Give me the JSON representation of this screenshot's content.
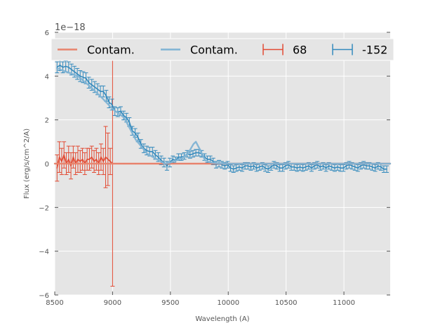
{
  "chart_data": {
    "type": "line",
    "xlabel": "Wavelength (A)",
    "ylabel": "Flux (erg/s/cm^2/A)",
    "y_offset_text": "1e−18",
    "xlim": [
      8500,
      11400
    ],
    "ylim": [
      -6,
      6
    ],
    "x_ticks": [
      8500,
      9000,
      9500,
      10000,
      10500,
      11000
    ],
    "x_tick_labels": [
      "8500",
      "9000",
      "9500",
      "10000",
      "10500",
      "11000"
    ],
    "y_ticks": [
      -6,
      -4,
      -2,
      0,
      2,
      4,
      6
    ],
    "y_tick_labels": [
      "−6",
      "−4",
      "−2",
      "0",
      "2",
      "4",
      "6"
    ],
    "grid": true,
    "background": "#e5e5e5",
    "legend_position": "top",
    "series": [
      {
        "name": "Contam.",
        "kind": "line",
        "color": "#e8836d",
        "x": [
          8500,
          11400
        ],
        "y": [
          0,
          0
        ]
      },
      {
        "name": "Contam.",
        "kind": "line",
        "color": "#7fb3d4",
        "x": [
          8520,
          8600,
          8700,
          8800,
          8900,
          9000,
          9100,
          9200,
          9300,
          9400,
          9450,
          9500,
          9550,
          9600,
          9650,
          9700,
          9720,
          9750,
          9800,
          9850,
          9900,
          10000,
          10500,
          11000,
          11400
        ],
        "y": [
          4.35,
          4.2,
          4.0,
          3.55,
          3.05,
          2.5,
          2.1,
          1.1,
          0.45,
          0.15,
          0.0,
          0.05,
          0.15,
          0.25,
          0.45,
          0.9,
          1.0,
          0.7,
          0.15,
          0.05,
          0.02,
          0.0,
          0.0,
          0.0,
          0.0
        ]
      },
      {
        "name": "68",
        "kind": "errorbar",
        "color": "#e24a33",
        "x": [
          8520,
          8540,
          8560,
          8580,
          8600,
          8620,
          8640,
          8660,
          8680,
          8700,
          8720,
          8740,
          8760,
          8780,
          8800,
          8820,
          8840,
          8860,
          8880,
          8900,
          8920,
          8940,
          8960,
          8980,
          9000,
          9100,
          9200,
          9300,
          9400,
          9500,
          9600,
          9700,
          9800,
          9900,
          10000
        ],
        "y": [
          -0.2,
          0.3,
          0.1,
          0.4,
          0.0,
          0.2,
          -0.1,
          0.3,
          0.0,
          0.2,
          0.1,
          0.2,
          0.0,
          0.2,
          0.2,
          0.3,
          0.1,
          0.2,
          0.0,
          0.3,
          0.1,
          0.3,
          0.2,
          0.1,
          0.0,
          0.0,
          0.0,
          0.0,
          0.0,
          0.0,
          0.0,
          0.0,
          0.0,
          0.0,
          0.0
        ],
        "yerr": [
          0.6,
          0.7,
          0.6,
          0.6,
          0.5,
          0.6,
          0.6,
          0.5,
          0.5,
          0.6,
          0.5,
          0.5,
          0.5,
          0.5,
          0.5,
          0.5,
          0.5,
          0.5,
          0.5,
          0.6,
          0.6,
          1.4,
          1.2,
          0.6,
          5.6,
          0,
          0,
          0,
          0,
          0,
          0,
          0,
          0,
          0,
          0
        ]
      },
      {
        "name": "-152",
        "kind": "errorbar",
        "color": "#348abd",
        "x": [
          8520,
          8545,
          8570,
          8595,
          8620,
          8645,
          8670,
          8695,
          8720,
          8745,
          8770,
          8795,
          8820,
          8845,
          8870,
          8895,
          8920,
          8945,
          8970,
          8995,
          9020,
          9045,
          9070,
          9095,
          9120,
          9145,
          9170,
          9195,
          9220,
          9245,
          9270,
          9295,
          9320,
          9345,
          9370,
          9395,
          9420,
          9445,
          9470,
          9495,
          9520,
          9545,
          9570,
          9595,
          9620,
          9645,
          9670,
          9695,
          9720,
          9745,
          9770,
          9795,
          9820,
          9845,
          9870,
          9895,
          9920,
          9945,
          9970,
          9995,
          10020,
          10045,
          10070,
          10095,
          10120,
          10145,
          10170,
          10195,
          10220,
          10245,
          10270,
          10295,
          10320,
          10345,
          10370,
          10395,
          10420,
          10445,
          10470,
          10495,
          10520,
          10545,
          10570,
          10595,
          10620,
          10645,
          10670,
          10695,
          10720,
          10745,
          10770,
          10795,
          10820,
          10845,
          10870,
          10895,
          10920,
          10945,
          10970,
          10995,
          11020,
          11045,
          11070,
          11095,
          11120,
          11145,
          11170,
          11195,
          11220,
          11245,
          11270,
          11295,
          11320,
          11345,
          11370
        ],
        "y": [
          4.4,
          4.5,
          4.4,
          4.45,
          4.4,
          4.3,
          4.2,
          4.1,
          4.0,
          3.95,
          3.9,
          3.7,
          3.6,
          3.5,
          3.4,
          3.3,
          3.3,
          3.1,
          2.8,
          2.7,
          2.4,
          2.35,
          2.4,
          2.2,
          2.1,
          1.9,
          1.5,
          1.4,
          1.2,
          0.9,
          0.7,
          0.6,
          0.55,
          0.55,
          0.4,
          0.3,
          0.15,
          0.05,
          -0.1,
          0.05,
          0.2,
          0.15,
          0.3,
          0.3,
          0.35,
          0.45,
          0.4,
          0.45,
          0.5,
          0.5,
          0.45,
          0.3,
          0.2,
          0.2,
          0.1,
          -0.05,
          0.0,
          -0.05,
          -0.1,
          -0.05,
          -0.2,
          -0.25,
          -0.2,
          -0.15,
          -0.2,
          -0.1,
          -0.1,
          -0.15,
          -0.1,
          -0.2,
          -0.15,
          -0.1,
          -0.2,
          -0.25,
          -0.15,
          -0.05,
          -0.1,
          -0.2,
          -0.2,
          -0.1,
          -0.05,
          -0.15,
          -0.15,
          -0.2,
          -0.15,
          -0.2,
          -0.15,
          -0.1,
          -0.2,
          -0.1,
          -0.05,
          -0.15,
          -0.1,
          -0.2,
          -0.1,
          -0.15,
          -0.2,
          -0.15,
          -0.2,
          -0.2,
          -0.1,
          -0.05,
          -0.1,
          -0.15,
          -0.2,
          -0.1,
          -0.05,
          -0.1,
          -0.1,
          -0.15,
          -0.2,
          -0.1,
          -0.15,
          -0.25,
          -0.25
        ],
        "yerr": [
          0.25,
          0.25,
          0.25,
          0.25,
          0.25,
          0.25,
          0.25,
          0.25,
          0.25,
          0.25,
          0.25,
          0.25,
          0.25,
          0.25,
          0.25,
          0.25,
          0.25,
          0.25,
          0.25,
          0.25,
          0.2,
          0.2,
          0.2,
          0.2,
          0.2,
          0.2,
          0.2,
          0.2,
          0.2,
          0.2,
          0.2,
          0.2,
          0.2,
          0.2,
          0.2,
          0.2,
          0.2,
          0.2,
          0.2,
          0.2,
          0.15,
          0.15,
          0.15,
          0.15,
          0.15,
          0.15,
          0.15,
          0.15,
          0.15,
          0.15,
          0.15,
          0.15,
          0.15,
          0.15,
          0.15,
          0.15,
          0.15,
          0.15,
          0.15,
          0.15,
          0.15,
          0.15,
          0.15,
          0.15,
          0.15,
          0.15,
          0.15,
          0.15,
          0.15,
          0.15,
          0.15,
          0.15,
          0.15,
          0.15,
          0.15,
          0.15,
          0.15,
          0.15,
          0.15,
          0.15,
          0.15,
          0.15,
          0.15,
          0.15,
          0.15,
          0.15,
          0.15,
          0.15,
          0.15,
          0.15,
          0.15,
          0.15,
          0.15,
          0.15,
          0.15,
          0.15,
          0.15,
          0.15,
          0.15,
          0.15,
          0.15,
          0.15,
          0.15,
          0.15,
          0.15,
          0.15,
          0.15,
          0.15,
          0.15,
          0.15,
          0.15,
          0.15,
          0.15,
          0.15,
          0.15
        ]
      }
    ]
  }
}
